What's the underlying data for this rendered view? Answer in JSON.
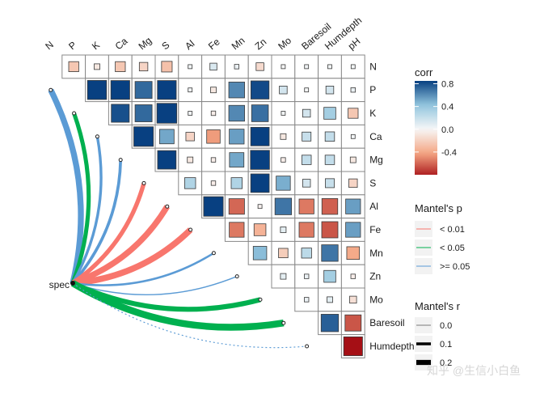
{
  "chart_data": {
    "type": "heatmap",
    "variables": [
      "N",
      "P",
      "K",
      "Ca",
      "Mg",
      "S",
      "Al",
      "Fe",
      "Mn",
      "Zn",
      "Mo",
      "Baresoil",
      "Humdepth",
      "pH"
    ],
    "corr_upper": [
      [
        null,
        -0.25,
        -0.08,
        -0.25,
        -0.18,
        -0.28,
        0.02,
        0.12,
        0.05,
        -0.15,
        0.01,
        0.03,
        0.02,
        0.02
      ],
      [
        null,
        null,
        0.9,
        0.88,
        0.72,
        0.88,
        0.02,
        -0.08,
        0.62,
        0.82,
        0.15,
        0.01,
        0.15,
        0.05
      ],
      [
        null,
        null,
        null,
        0.8,
        0.72,
        0.98,
        0.02,
        -0.05,
        0.62,
        0.7,
        0.02,
        0.15,
        0.35,
        -0.25
      ],
      [
        null,
        null,
        null,
        null,
        0.95,
        0.52,
        -0.18,
        -0.45,
        0.55,
        0.85,
        -0.08,
        0.2,
        0.22,
        0.02
      ],
      [
        null,
        null,
        null,
        null,
        null,
        0.85,
        -0.08,
        -0.05,
        0.52,
        0.9,
        -0.05,
        0.22,
        0.22,
        -0.08
      ],
      [
        null,
        null,
        null,
        null,
        null,
        null,
        0.3,
        -0.05,
        0.3,
        0.85,
        0.5,
        0.15,
        0.2,
        -0.18
      ],
      [
        null,
        null,
        null,
        null,
        null,
        null,
        null,
        0.95,
        -0.6,
        -0.03,
        0.68,
        -0.55,
        -0.62,
        0.55
      ],
      [
        null,
        null,
        null,
        null,
        null,
        null,
        null,
        null,
        -0.55,
        -0.35,
        0.08,
        -0.55,
        -0.65,
        0.55
      ],
      [
        null,
        null,
        null,
        null,
        null,
        null,
        null,
        null,
        null,
        0.45,
        -0.22,
        0.25,
        0.68,
        -0.4
      ],
      [
        null,
        null,
        null,
        null,
        null,
        null,
        null,
        null,
        null,
        null,
        0.08,
        0.05,
        0.35,
        -0.05
      ],
      [
        null,
        null,
        null,
        null,
        null,
        null,
        null,
        null,
        null,
        null,
        null,
        0.05,
        0.08,
        -0.12
      ],
      [
        null,
        null,
        null,
        null,
        null,
        null,
        null,
        null,
        null,
        null,
        null,
        null,
        0.75,
        -0.65
      ],
      [
        null,
        null,
        null,
        null,
        null,
        null,
        null,
        null,
        null,
        null,
        null,
        null,
        null,
        -0.88
      ]
    ],
    "spec_label": "spec",
    "mantel": [
      {
        "var": "P",
        "p_class": ">= 0.05",
        "r": 0.24
      },
      {
        "var": "K",
        "p_class": "< 0.05",
        "r": 0.16
      },
      {
        "var": "Ca",
        "p_class": ">= 0.05",
        "r": 0.1
      },
      {
        "var": "Mg",
        "p_class": ">= 0.05",
        "r": 0.11
      },
      {
        "var": "S",
        "p_class": "< 0.01",
        "r": 0.17
      },
      {
        "var": "Al",
        "p_class": "< 0.01",
        "r": 0.24
      },
      {
        "var": "Fe",
        "p_class": "< 0.01",
        "r": 0.25
      },
      {
        "var": "Mn",
        "p_class": ">= 0.05",
        "r": 0.07
      },
      {
        "var": "Zn",
        "p_class": ">= 0.05",
        "r": 0.03
      },
      {
        "var": "Mo",
        "p_class": "< 0.05",
        "r": 0.2
      },
      {
        "var": "Baresoil",
        "p_class": "< 0.05",
        "r": 0.28
      },
      {
        "var": "Humdepth",
        "p_class": ">= 0.05",
        "r": 0.02
      }
    ],
    "legend": {
      "corr_title": "corr",
      "corr_ticks": [
        "0.8",
        "0.4",
        "0.0",
        "-0.4"
      ],
      "corr_range": [
        -0.8,
        0.85
      ],
      "mantel_p_title": "Mantel's p",
      "mantel_p_items": [
        {
          "label": "< 0.01",
          "color": "#f8766d"
        },
        {
          "label": "< 0.05",
          "color": "#00b04f"
        },
        {
          "label": ">= 0.05",
          "color": "#5b9bd5"
        }
      ],
      "mantel_r_title": "Mantel's r",
      "mantel_r_items": [
        {
          "label": "0.0",
          "r": 0.0
        },
        {
          "label": "0.1",
          "r": 0.1
        },
        {
          "label": "0.2",
          "r": 0.2
        }
      ]
    }
  },
  "watermark": "知乎 @生信小白鱼",
  "colors": {
    "neg_dark": "#a50f15",
    "neg_mid": "#f4a582",
    "zero": "#f7f7f7",
    "pos_mid": "#92c5de",
    "pos_dark": "#084081",
    "p_001": "#f8766d",
    "p_005": "#00b04f",
    "p_ns": "#5b9bd5"
  }
}
